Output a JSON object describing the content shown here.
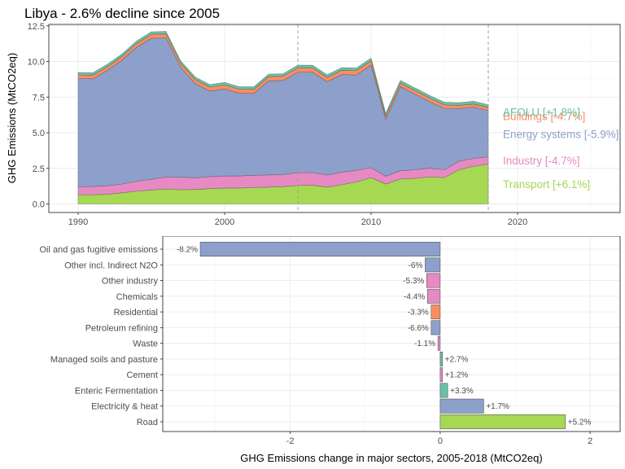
{
  "chart_data": [
    {
      "type": "area",
      "title": "Libya - 2.6% decline since 2005",
      "xlabel": "",
      "ylabel": "GHG Emissions (MtCO2eq)",
      "xlim": [
        1988,
        2027
      ],
      "ylim": [
        -0.6,
        12.6
      ],
      "x_ticks": [
        1990,
        2000,
        2010,
        2020
      ],
      "y_ticks": [
        0.0,
        2.5,
        5.0,
        7.5,
        10.0,
        12.5
      ],
      "y_tick_labels": [
        "0.0",
        "2.5",
        "5.0",
        "7.5",
        "10.0",
        "12.5"
      ],
      "reference_lines_x": [
        2005,
        2018
      ],
      "grid": true,
      "stack_order": [
        "Transport",
        "Industry",
        "Energy systems",
        "Buildings",
        "AFOLU"
      ],
      "x": [
        1990,
        1991,
        1992,
        1993,
        1994,
        1995,
        1996,
        1997,
        1998,
        1999,
        2000,
        2001,
        2002,
        2003,
        2004,
        2005,
        2006,
        2007,
        2008,
        2009,
        2010,
        2011,
        2012,
        2013,
        2014,
        2015,
        2016,
        2017,
        2018
      ],
      "series": [
        {
          "name": "Transport",
          "label": "Transport [+6.1%]",
          "color": "#a6d854",
          "values": [
            0.65,
            0.65,
            0.68,
            0.78,
            0.9,
            0.98,
            1.05,
            1.0,
            1.02,
            1.08,
            1.12,
            1.12,
            1.15,
            1.18,
            1.22,
            1.3,
            1.32,
            1.18,
            1.35,
            1.55,
            1.85,
            1.4,
            1.75,
            1.8,
            1.9,
            1.85,
            2.4,
            2.65,
            2.8
          ]
        },
        {
          "name": "Industry",
          "label": "Industry [-4.7%]",
          "color": "#e78ac3",
          "values": [
            0.55,
            0.58,
            0.6,
            0.62,
            0.7,
            0.75,
            0.85,
            0.88,
            0.82,
            0.84,
            0.85,
            0.85,
            0.86,
            0.86,
            0.85,
            0.9,
            0.88,
            0.85,
            0.88,
            0.8,
            0.7,
            0.55,
            0.58,
            0.6,
            0.62,
            0.55,
            0.6,
            0.55,
            0.5
          ]
        },
        {
          "name": "Energy systems",
          "label": "Energy systems [-5.9%]",
          "color": "#8da0cb",
          "values": [
            7.6,
            7.55,
            8.1,
            8.7,
            9.4,
            9.9,
            9.75,
            7.7,
            6.6,
            6.0,
            6.1,
            5.8,
            5.75,
            6.6,
            6.6,
            7.05,
            7.05,
            6.55,
            6.85,
            6.7,
            7.2,
            4.0,
            5.9,
            5.3,
            4.65,
            4.3,
            3.7,
            3.6,
            3.25
          ]
        },
        {
          "name": "Buildings",
          "label": "Buildings [-4.7%]",
          "color": "#fc8d62",
          "values": [
            0.25,
            0.25,
            0.25,
            0.25,
            0.26,
            0.27,
            0.28,
            0.28,
            0.28,
            0.28,
            0.28,
            0.28,
            0.28,
            0.29,
            0.29,
            0.3,
            0.3,
            0.3,
            0.3,
            0.3,
            0.3,
            0.22,
            0.25,
            0.25,
            0.25,
            0.25,
            0.22,
            0.22,
            0.22
          ]
        },
        {
          "name": "AFOLU",
          "label": "AFOLU [+1.8%]",
          "color": "#66c2a5",
          "values": [
            0.18,
            0.18,
            0.18,
            0.18,
            0.18,
            0.18,
            0.18,
            0.18,
            0.18,
            0.18,
            0.18,
            0.18,
            0.18,
            0.18,
            0.18,
            0.19,
            0.19,
            0.19,
            0.19,
            0.19,
            0.19,
            0.19,
            0.19,
            0.19,
            0.19,
            0.19,
            0.19,
            0.19,
            0.19
          ]
        }
      ]
    },
    {
      "type": "bar",
      "orientation": "horizontal",
      "title": "",
      "xlabel": "GHG Emissions change in major sectors, 2005-2018 (MtCO2eq)",
      "ylabel": "",
      "xlim": [
        -3.7,
        2.4
      ],
      "x_ticks": [
        -2,
        0,
        2
      ],
      "x_tick_labels": [
        "-2",
        "0",
        "2"
      ],
      "grid": true,
      "categories": [
        "Oil and gas fugitive emissions",
        "Other incl. Indirect N2O",
        "Other industry",
        "Chemicals",
        "Residential",
        "Petroleum refining",
        "Waste",
        "Managed soils and pasture",
        "Cement",
        "Enteric Fermentation",
        "Electricity & heat",
        "Road"
      ],
      "values": [
        -3.2,
        -0.2,
        -0.18,
        -0.17,
        -0.12,
        -0.12,
        -0.03,
        0.03,
        0.03,
        0.1,
        0.58,
        1.67
      ],
      "labels": [
        "-8.2%",
        "-6%",
        "-5.3%",
        "-4.4%",
        "-3.3%",
        "-6.6%",
        "-1.1%",
        "+2.7%",
        "+1.2%",
        "+3.3%",
        "+1.7%",
        "+5.2%"
      ],
      "colors": [
        "#8da0cb",
        "#8da0cb",
        "#e78ac3",
        "#e78ac3",
        "#fc8d62",
        "#8da0cb",
        "#e78ac3",
        "#66c2a5",
        "#e78ac3",
        "#66c2a5",
        "#8da0cb",
        "#a6d854"
      ]
    }
  ]
}
